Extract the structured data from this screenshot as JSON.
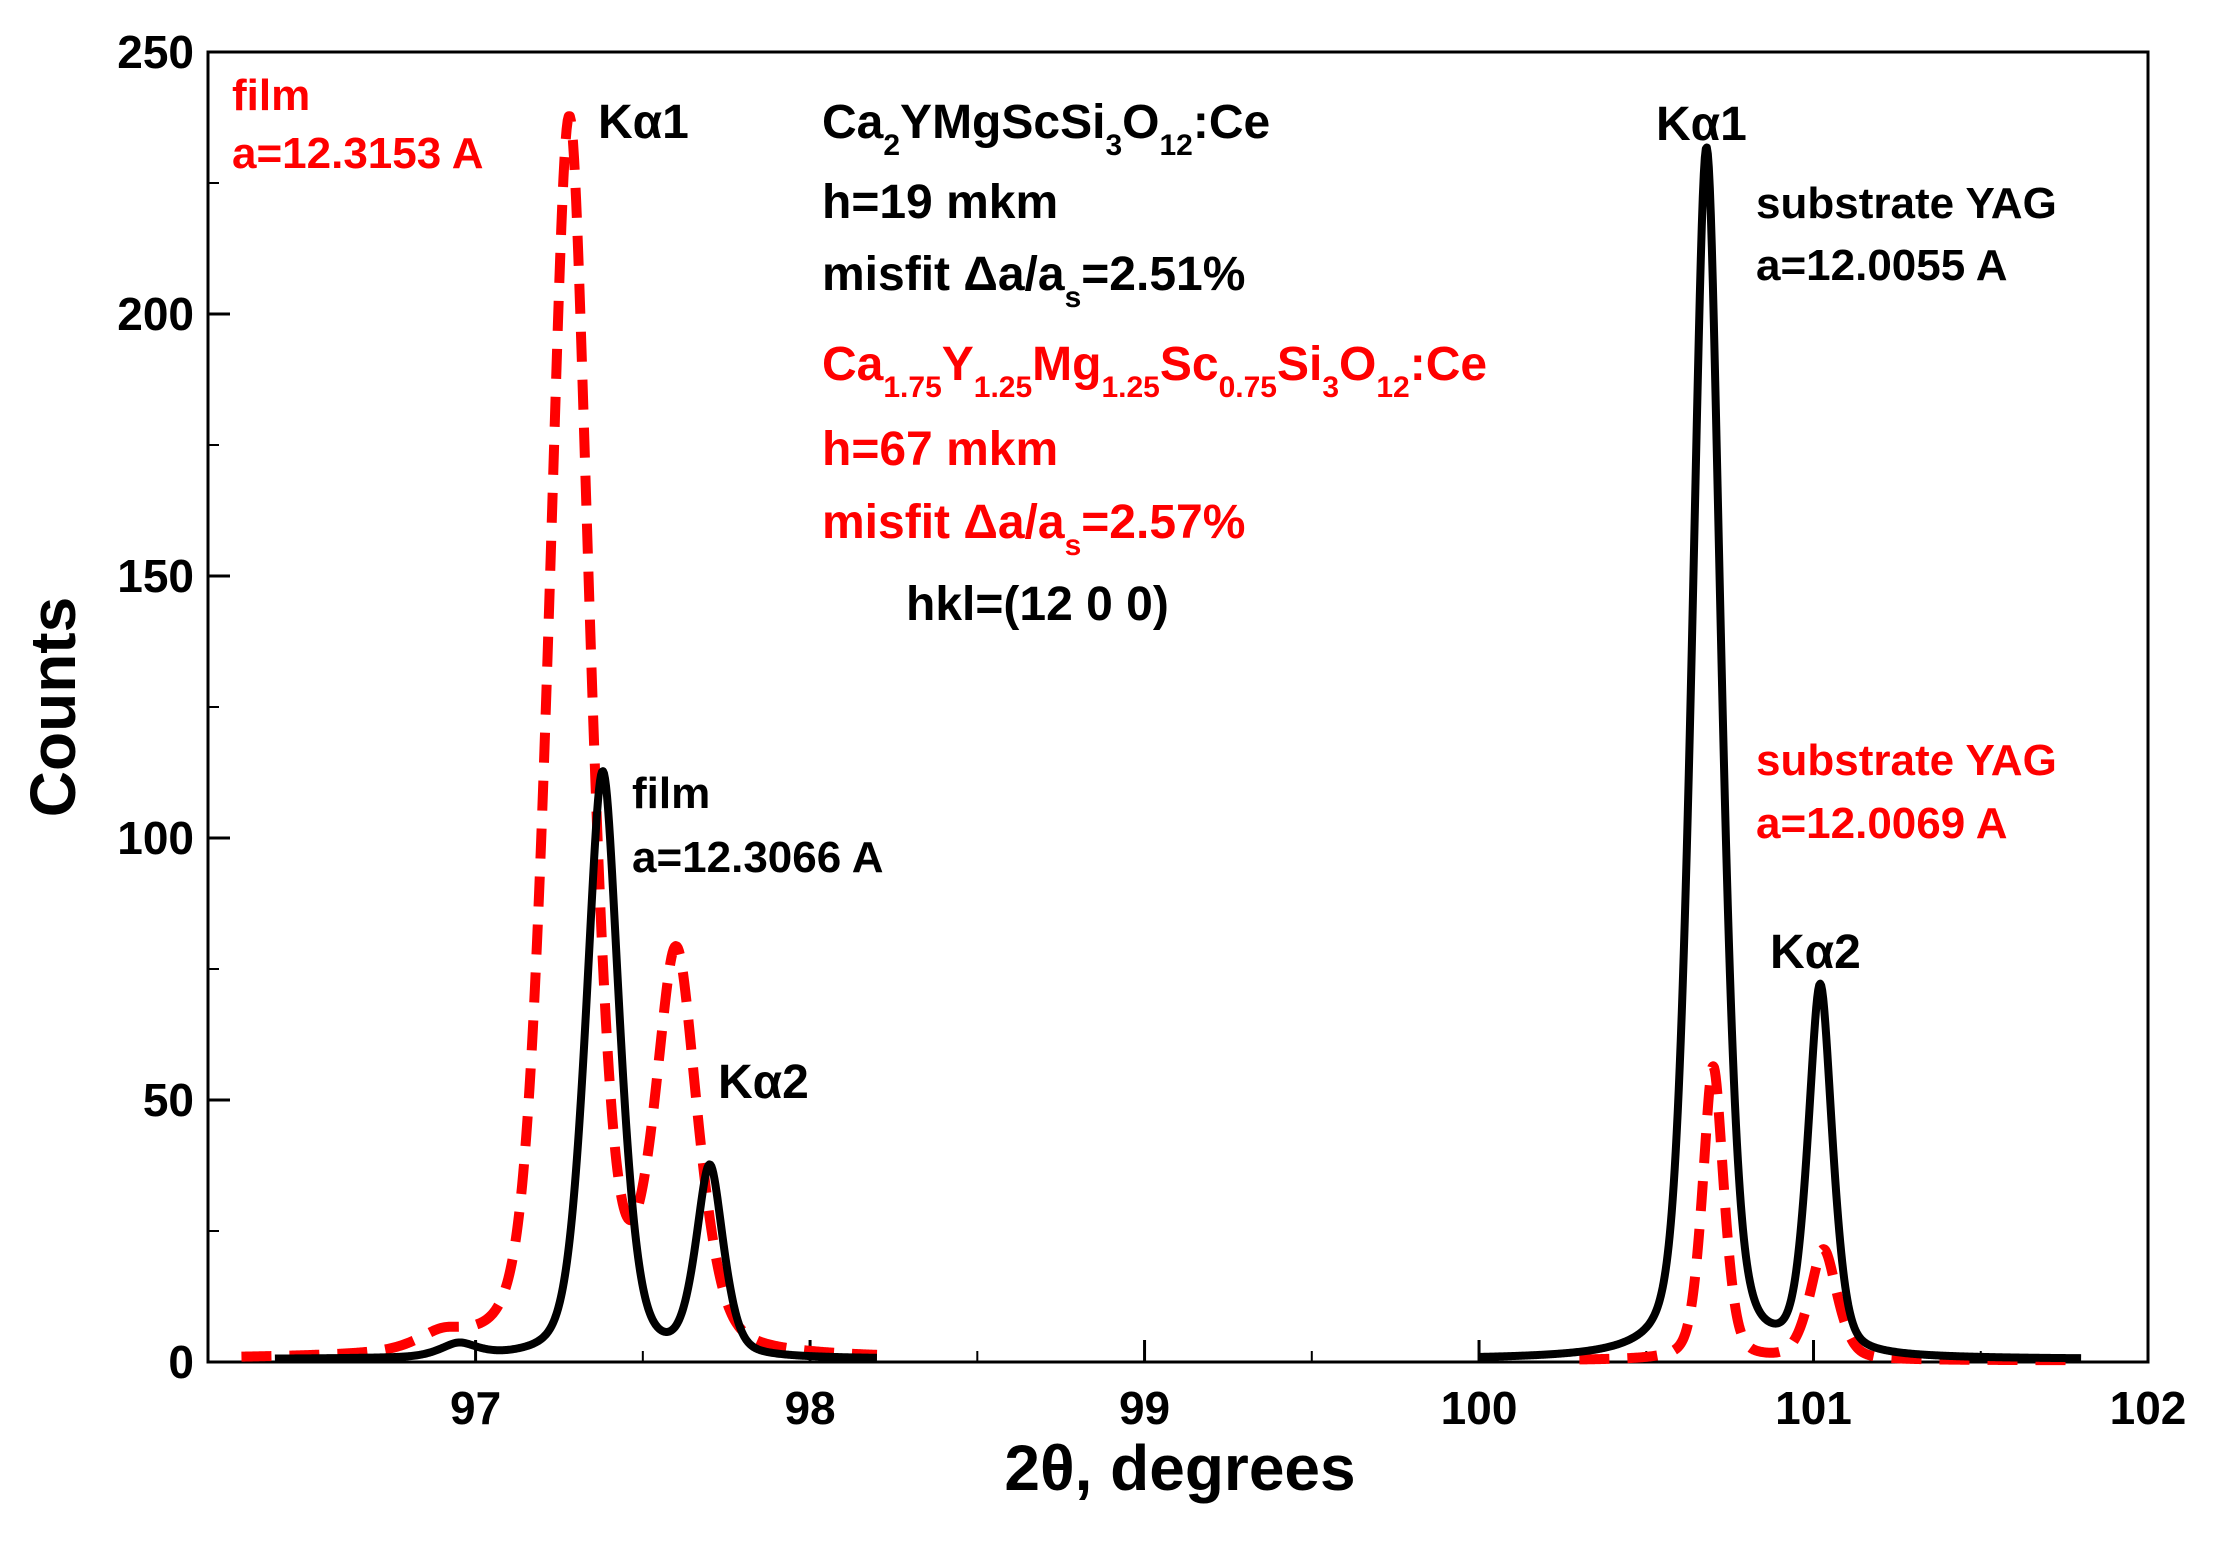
{
  "chart_data": {
    "type": "line",
    "xlabel": "2θ, degrees",
    "ylabel": "Counts",
    "xlim": [
      96.2,
      102
    ],
    "ylim": [
      0,
      250
    ],
    "x_ticks": [
      97,
      98,
      99,
      100,
      101,
      102
    ],
    "x_tick_labels": [
      "97",
      "98",
      "99",
      "100",
      "101",
      "102"
    ],
    "y_ticks": [
      0,
      50,
      100,
      150,
      200,
      250
    ],
    "y_tick_labels": [
      "0",
      "50",
      "100",
      "150",
      "200",
      "250"
    ],
    "grid": false,
    "series": [
      {
        "name": "Ca2YMgScSi3O12:Ce film (h=19 mkm)",
        "color": "#000000",
        "style": "solid",
        "segments": [
          {
            "x_range": [
              96.4,
              98.2
            ],
            "baseline": 0.5,
            "peaks": [
              {
                "center": 96.95,
                "height": 2.5,
                "width": 0.06
              },
              {
                "center": 97.38,
                "height": 112,
                "width": 0.055
              },
              {
                "center": 97.7,
                "height": 36,
                "width": 0.045
              }
            ]
          },
          {
            "x_range": [
              100.0,
              101.8
            ],
            "baseline": 0.5,
            "peaks": [
              {
                "center": 100.68,
                "height": 231,
                "width": 0.048
              },
              {
                "center": 101.02,
                "height": 70,
                "width": 0.04
              }
            ]
          }
        ]
      },
      {
        "name": "Ca1.75Y1.25Mg1.25Sc0.75Si3O12:Ce film (h=67 mkm)",
        "color": "#ff0000",
        "style": "dashed",
        "segments": [
          {
            "x_range": [
              96.3,
              98.2
            ],
            "baseline": 0.5,
            "peaks": [
              {
                "center": 96.9,
                "height": 3,
                "width": 0.08
              },
              {
                "center": 97.28,
                "height": 236,
                "width": 0.068
              },
              {
                "center": 97.6,
                "height": 75,
                "width": 0.07
              }
            ]
          },
          {
            "x_range": [
              100.3,
              101.8
            ],
            "baseline": 0.3,
            "peaks": [
              {
                "center": 100.7,
                "height": 56,
                "width": 0.035
              },
              {
                "center": 101.03,
                "height": 21,
                "width": 0.045
              }
            ]
          }
        ]
      }
    ]
  },
  "annotations": {
    "red_film_label": "film",
    "red_film_a": "a=12.3153 A",
    "left_ka1": "Kα1",
    "left_ka2": "Kα2",
    "black_film_label": "film",
    "black_film_a": "a=12.3066 A",
    "right_ka1": "Kα1",
    "right_ka2": "Kα2",
    "black_substrate_label": "substrate YAG",
    "black_substrate_a": "a=12.0055 A",
    "red_substrate_label": "substrate YAG",
    "red_substrate_a": "a=12.0069 A",
    "black_formula": {
      "parts": [
        "Ca",
        "2",
        "YMgScSi",
        "3",
        "O",
        "12",
        ":Ce"
      ]
    },
    "black_h": "h=19 mkm",
    "black_misfit_prefix": "misfit Δa/a",
    "black_misfit_sub": "s",
    "black_misfit_suffix": "=2.51%",
    "red_formula": {
      "parts": [
        "Ca",
        "1.75",
        "Y",
        "1.25",
        "Mg",
        "1.25",
        "Sc",
        "0.75",
        "Si",
        "3",
        "O",
        "12",
        ":Ce"
      ]
    },
    "red_h": "h=67 mkm",
    "red_misfit_prefix": "misfit Δa/a",
    "red_misfit_sub": "s",
    "red_misfit_suffix": "=2.57%",
    "hkl": "hkl=(12 0 0)"
  },
  "colors": {
    "black_series": "#000000",
    "red_series": "#ff0000",
    "frame": "#000000"
  }
}
